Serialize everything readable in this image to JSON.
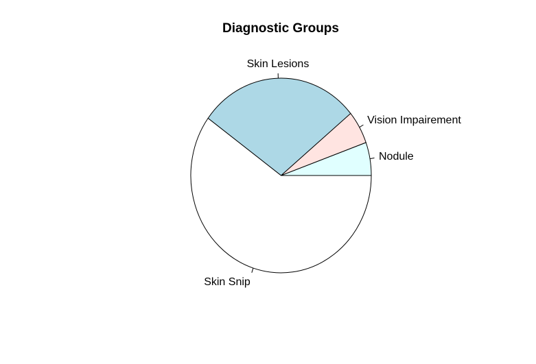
{
  "chart_data": {
    "type": "pie",
    "title": "Diagnostic Groups",
    "start_angle_deg": 0,
    "direction": "counterclockwise",
    "slices": [
      {
        "label": "Nodule",
        "value": 5.5,
        "color": "#E0FFFF"
      },
      {
        "label": "Vision Impairement",
        "value": 5.5,
        "color": "#FFE4E1"
      },
      {
        "label": "Skin Lesions",
        "value": 29,
        "color": "#ADD8E6"
      },
      {
        "label": "Skin Snip",
        "value": 60,
        "color": "#FFFFFF"
      }
    ]
  }
}
